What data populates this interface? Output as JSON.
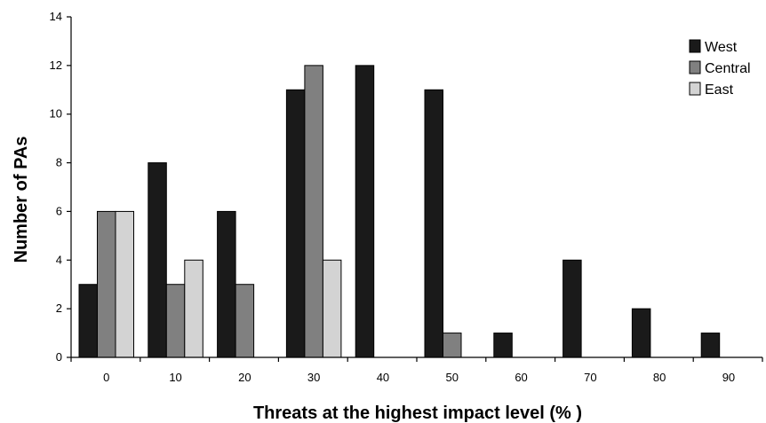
{
  "chart_data": {
    "type": "bar",
    "title": "",
    "xlabel": "Threats at the highest impact level (% )",
    "ylabel": "Number of PAs",
    "categories": [
      "0",
      "10",
      "20",
      "30",
      "40",
      "50",
      "60",
      "70",
      "80",
      "90"
    ],
    "yticks": [
      "0",
      "2",
      "4",
      "6",
      "8",
      "10",
      "12",
      "14"
    ],
    "ylim": [
      0,
      14
    ],
    "grid": false,
    "legend_position": "top-right",
    "series": [
      {
        "name": "West",
        "color": "#1a1a1a",
        "values": [
          3,
          8,
          6,
          11,
          12,
          11,
          1,
          4,
          2,
          1
        ]
      },
      {
        "name": "Central",
        "color": "#808080",
        "values": [
          6,
          3,
          3,
          12,
          0,
          1,
          0,
          0,
          0,
          0
        ]
      },
      {
        "name": "East",
        "color": "#d3d3d3",
        "values": [
          6,
          4,
          0,
          4,
          0,
          0,
          0,
          0,
          0,
          0
        ]
      }
    ]
  }
}
